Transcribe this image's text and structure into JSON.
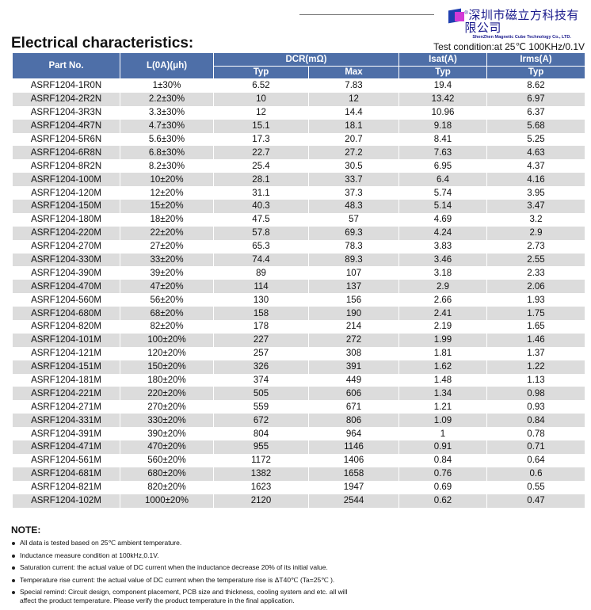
{
  "header": {
    "company_cn": "深圳市磁立方科技有限公司",
    "company_en": "ShenZhen Magnetic Cube Technology Co., LTD.",
    "reg": "®"
  },
  "title": "Electrical characteristics:",
  "test_condition": "Test condition:at 25℃ 100KHz/0.1V",
  "table": {
    "headers": {
      "part": "Part No.",
      "inductance": "L(0A)(μh)",
      "dcr": "DCR(mΩ)",
      "isat": "Isat(A)",
      "irms": "Irms(A)",
      "typ": "Typ",
      "max": "Max"
    },
    "rows": [
      [
        "ASRF1204-1R0N",
        "1±30%",
        "6.52",
        "7.83",
        "19.4",
        "8.62"
      ],
      [
        "ASRF1204-2R2N",
        "2.2±30%",
        "10",
        "12",
        "13.42",
        "6.97"
      ],
      [
        "ASRF1204-3R3N",
        "3.3±30%",
        "12",
        "14.4",
        "10.96",
        "6.37"
      ],
      [
        "ASRF1204-4R7N",
        "4.7±30%",
        "15.1",
        "18.1",
        "9.18",
        "5.68"
      ],
      [
        "ASRF1204-5R6N",
        "5.6±30%",
        "17.3",
        "20.7",
        "8.41",
        "5.25"
      ],
      [
        "ASRF1204-6R8N",
        "6.8±30%",
        "22.7",
        "27.2",
        "7.63",
        "4.63"
      ],
      [
        "ASRF1204-8R2N",
        "8.2±30%",
        "25.4",
        "30.5",
        "6.95",
        "4.37"
      ],
      [
        "ASRF1204-100M",
        "10±20%",
        "28.1",
        "33.7",
        "6.4",
        "4.16"
      ],
      [
        "ASRF1204-120M",
        "12±20%",
        "31.1",
        "37.3",
        "5.74",
        "3.95"
      ],
      [
        "ASRF1204-150M",
        "15±20%",
        "40.3",
        "48.3",
        "5.14",
        "3.47"
      ],
      [
        "ASRF1204-180M",
        "18±20%",
        "47.5",
        "57",
        "4.69",
        "3.2"
      ],
      [
        "ASRF1204-220M",
        "22±20%",
        "57.8",
        "69.3",
        "4.24",
        "2.9"
      ],
      [
        "ASRF1204-270M",
        "27±20%",
        "65.3",
        "78.3",
        "3.83",
        "2.73"
      ],
      [
        "ASRF1204-330M",
        "33±20%",
        "74.4",
        "89.3",
        "3.46",
        "2.55"
      ],
      [
        "ASRF1204-390M",
        "39±20%",
        "89",
        "107",
        "3.18",
        "2.33"
      ],
      [
        "ASRF1204-470M",
        "47±20%",
        "114",
        "137",
        "2.9",
        "2.06"
      ],
      [
        "ASRF1204-560M",
        "56±20%",
        "130",
        "156",
        "2.66",
        "1.93"
      ],
      [
        "ASRF1204-680M",
        "68±20%",
        "158",
        "190",
        "2.41",
        "1.75"
      ],
      [
        "ASRF1204-820M",
        "82±20%",
        "178",
        "214",
        "2.19",
        "1.65"
      ],
      [
        "ASRF1204-101M",
        "100±20%",
        "227",
        "272",
        "1.99",
        "1.46"
      ],
      [
        "ASRF1204-121M",
        "120±20%",
        "257",
        "308",
        "1.81",
        "1.37"
      ],
      [
        "ASRF1204-151M",
        "150±20%",
        "326",
        "391",
        "1.62",
        "1.22"
      ],
      [
        "ASRF1204-181M",
        "180±20%",
        "374",
        "449",
        "1.48",
        "1.13"
      ],
      [
        "ASRF1204-221M",
        "220±20%",
        "505",
        "606",
        "1.34",
        "0.98"
      ],
      [
        "ASRF1204-271M",
        "270±20%",
        "559",
        "671",
        "1.21",
        "0.93"
      ],
      [
        "ASRF1204-331M",
        "330±20%",
        "672",
        "806",
        "1.09",
        "0.84"
      ],
      [
        "ASRF1204-391M",
        "390±20%",
        "804",
        "964",
        "1",
        "0.78"
      ],
      [
        "ASRF1204-471M",
        "470±20%",
        "955",
        "1146",
        "0.91",
        "0.71"
      ],
      [
        "ASRF1204-561M",
        "560±20%",
        "1172",
        "1406",
        "0.84",
        "0.64"
      ],
      [
        "ASRF1204-681M",
        "680±20%",
        "1382",
        "1658",
        "0.76",
        "0.6"
      ],
      [
        "ASRF1204-821M",
        "820±20%",
        "1623",
        "1947",
        "0.69",
        "0.55"
      ],
      [
        "ASRF1204-102M",
        "1000±20%",
        "2120",
        "2544",
        "0.62",
        "0.47"
      ]
    ]
  },
  "notes": {
    "title": "NOTE:",
    "items": [
      "All data is tested based on 25℃ ambient temperature.",
      "Inductance measure condition at 100kHz,0.1V.",
      "Saturation current: the actual value of DC current when the inductance decrease 20% of its initial value.",
      "Temperature rise current: the actual value of DC current when the temperature rise is ΔT40℃ (Ta=25℃ ).",
      "Special remind: Circuit design, component placement, PCB size and thickness, cooling system and etc. all will affect the product temperature. Please verify the product temperature in the final application."
    ]
  },
  "colors": {
    "header_bg": "#4e6fa8",
    "alt_row": "#dcdcdc",
    "brand": "#1a1a8c"
  }
}
